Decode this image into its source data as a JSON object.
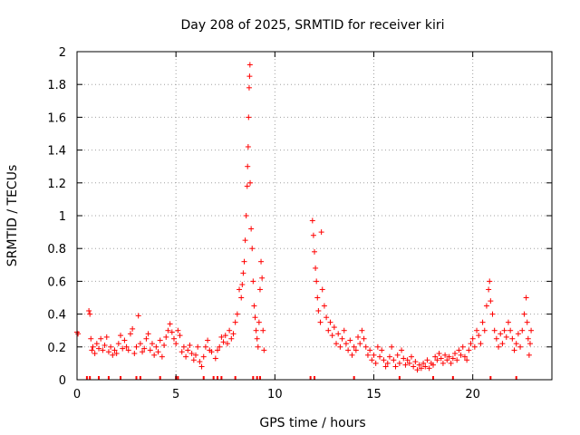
{
  "chart_data": {
    "type": "scatter",
    "title": "Day 208 of 2025, SRMTID for receiver kiri",
    "xlabel": "GPS time / hours",
    "ylabel": "SRMTID / TECUs",
    "xlim": [
      0,
      24
    ],
    "ylim": [
      0,
      2
    ],
    "xticks": [
      0,
      5,
      10,
      15,
      20
    ],
    "xtick_labels": [
      "0",
      "5",
      "10",
      "15",
      "20"
    ],
    "yticks": [
      0,
      0.2,
      0.4,
      0.6,
      0.8,
      1,
      1.2,
      1.4,
      1.6,
      1.8,
      2
    ],
    "ytick_labels": [
      "0",
      "0.2",
      "0.4",
      "0.6",
      "0.8",
      "1",
      "1.2",
      "1.4",
      "1.6",
      "1.8",
      "2"
    ],
    "grid": true,
    "marker": "+",
    "color": "#ff0000",
    "series": [
      {
        "name": "SRMTID",
        "points": [
          [
            0.0,
            0.29
          ],
          [
            0.05,
            0.28
          ],
          [
            0.6,
            0.42
          ],
          [
            0.65,
            0.4
          ],
          [
            0.7,
            0.25
          ],
          [
            0.75,
            0.18
          ],
          [
            0.8,
            0.2
          ],
          [
            0.9,
            0.16
          ],
          [
            1.0,
            0.22
          ],
          [
            1.1,
            0.19
          ],
          [
            1.2,
            0.25
          ],
          [
            1.3,
            0.18
          ],
          [
            1.4,
            0.21
          ],
          [
            1.5,
            0.26
          ],
          [
            1.6,
            0.17
          ],
          [
            1.7,
            0.2
          ],
          [
            1.8,
            0.15
          ],
          [
            1.9,
            0.18
          ],
          [
            2.0,
            0.16
          ],
          [
            2.1,
            0.22
          ],
          [
            2.2,
            0.27
          ],
          [
            2.3,
            0.19
          ],
          [
            2.4,
            0.24
          ],
          [
            2.5,
            0.2
          ],
          [
            2.6,
            0.18
          ],
          [
            2.7,
            0.28
          ],
          [
            2.8,
            0.31
          ],
          [
            2.9,
            0.16
          ],
          [
            3.0,
            0.2
          ],
          [
            3.1,
            0.39
          ],
          [
            3.2,
            0.22
          ],
          [
            3.3,
            0.17
          ],
          [
            3.4,
            0.19
          ],
          [
            3.5,
            0.25
          ],
          [
            3.6,
            0.28
          ],
          [
            3.7,
            0.18
          ],
          [
            3.8,
            0.22
          ],
          [
            3.9,
            0.15
          ],
          [
            4.0,
            0.2
          ],
          [
            4.1,
            0.17
          ],
          [
            4.2,
            0.24
          ],
          [
            4.3,
            0.14
          ],
          [
            4.4,
            0.21
          ],
          [
            4.5,
            0.26
          ],
          [
            4.6,
            0.3
          ],
          [
            4.7,
            0.34
          ],
          [
            4.8,
            0.29
          ],
          [
            4.9,
            0.25
          ],
          [
            5.0,
            0.22
          ],
          [
            5.1,
            0.3
          ],
          [
            5.2,
            0.27
          ],
          [
            5.3,
            0.17
          ],
          [
            5.4,
            0.2
          ],
          [
            5.5,
            0.14
          ],
          [
            5.6,
            0.18
          ],
          [
            5.7,
            0.21
          ],
          [
            5.8,
            0.16
          ],
          [
            5.9,
            0.12
          ],
          [
            6.0,
            0.15
          ],
          [
            6.1,
            0.2
          ],
          [
            6.2,
            0.11
          ],
          [
            6.3,
            0.08
          ],
          [
            6.4,
            0.14
          ],
          [
            6.5,
            0.2
          ],
          [
            6.6,
            0.24
          ],
          [
            6.7,
            0.18
          ],
          [
            6.8,
            0.17
          ],
          [
            7.0,
            0.13
          ],
          [
            7.1,
            0.18
          ],
          [
            7.2,
            0.2
          ],
          [
            7.3,
            0.26
          ],
          [
            7.4,
            0.23
          ],
          [
            7.5,
            0.27
          ],
          [
            7.6,
            0.22
          ],
          [
            7.7,
            0.3
          ],
          [
            7.8,
            0.25
          ],
          [
            7.9,
            0.28
          ],
          [
            8.0,
            0.35
          ],
          [
            8.1,
            0.4
          ],
          [
            8.2,
            0.55
          ],
          [
            8.3,
            0.5
          ],
          [
            8.35,
            0.58
          ],
          [
            8.4,
            0.65
          ],
          [
            8.45,
            0.72
          ],
          [
            8.5,
            0.85
          ],
          [
            8.55,
            1.0
          ],
          [
            8.6,
            1.18
          ],
          [
            8.62,
            1.3
          ],
          [
            8.65,
            1.42
          ],
          [
            8.67,
            1.6
          ],
          [
            8.7,
            1.78
          ],
          [
            8.72,
            1.85
          ],
          [
            8.74,
            1.92
          ],
          [
            8.75,
            1.2
          ],
          [
            8.8,
            0.92
          ],
          [
            8.85,
            0.8
          ],
          [
            8.9,
            0.6
          ],
          [
            8.95,
            0.45
          ],
          [
            9.0,
            0.38
          ],
          [
            9.05,
            0.3
          ],
          [
            9.1,
            0.25
          ],
          [
            9.15,
            0.2
          ],
          [
            9.2,
            0.35
          ],
          [
            9.25,
            0.55
          ],
          [
            9.3,
            0.72
          ],
          [
            9.35,
            0.62
          ],
          [
            9.4,
            0.3
          ],
          [
            9.45,
            0.18
          ],
          [
            11.9,
            0.97
          ],
          [
            11.95,
            0.88
          ],
          [
            12.0,
            0.78
          ],
          [
            12.05,
            0.68
          ],
          [
            12.1,
            0.6
          ],
          [
            12.15,
            0.5
          ],
          [
            12.2,
            0.42
          ],
          [
            12.3,
            0.35
          ],
          [
            12.35,
            0.9
          ],
          [
            12.4,
            0.55
          ],
          [
            12.5,
            0.45
          ],
          [
            12.6,
            0.38
          ],
          [
            12.7,
            0.3
          ],
          [
            12.8,
            0.35
          ],
          [
            12.9,
            0.27
          ],
          [
            13.0,
            0.32
          ],
          [
            13.1,
            0.22
          ],
          [
            13.2,
            0.28
          ],
          [
            13.3,
            0.2
          ],
          [
            13.4,
            0.25
          ],
          [
            13.5,
            0.3
          ],
          [
            13.6,
            0.22
          ],
          [
            13.7,
            0.18
          ],
          [
            13.8,
            0.24
          ],
          [
            13.9,
            0.15
          ],
          [
            14.0,
            0.2
          ],
          [
            14.1,
            0.18
          ],
          [
            14.2,
            0.26
          ],
          [
            14.3,
            0.22
          ],
          [
            14.4,
            0.3
          ],
          [
            14.5,
            0.25
          ],
          [
            14.6,
            0.2
          ],
          [
            14.7,
            0.15
          ],
          [
            14.8,
            0.18
          ],
          [
            14.9,
            0.12
          ],
          [
            15.0,
            0.15
          ],
          [
            15.1,
            0.1
          ],
          [
            15.2,
            0.2
          ],
          [
            15.3,
            0.14
          ],
          [
            15.4,
            0.18
          ],
          [
            15.5,
            0.12
          ],
          [
            15.6,
            0.08
          ],
          [
            15.7,
            0.1
          ],
          [
            15.8,
            0.14
          ],
          [
            15.9,
            0.2
          ],
          [
            16.0,
            0.12
          ],
          [
            16.1,
            0.08
          ],
          [
            16.2,
            0.15
          ],
          [
            16.3,
            0.1
          ],
          [
            16.4,
            0.18
          ],
          [
            16.5,
            0.13
          ],
          [
            16.6,
            0.09
          ],
          [
            16.7,
            0.12
          ],
          [
            16.8,
            0.1
          ],
          [
            16.9,
            0.14
          ],
          [
            17.0,
            0.08
          ],
          [
            17.1,
            0.11
          ],
          [
            17.2,
            0.06
          ],
          [
            17.3,
            0.09
          ],
          [
            17.4,
            0.07
          ],
          [
            17.5,
            0.1
          ],
          [
            17.6,
            0.08
          ],
          [
            17.7,
            0.12
          ],
          [
            17.8,
            0.07
          ],
          [
            17.9,
            0.1
          ],
          [
            18.0,
            0.09
          ],
          [
            18.1,
            0.14
          ],
          [
            18.2,
            0.12
          ],
          [
            18.3,
            0.16
          ],
          [
            18.4,
            0.13
          ],
          [
            18.5,
            0.1
          ],
          [
            18.6,
            0.15
          ],
          [
            18.7,
            0.12
          ],
          [
            18.8,
            0.14
          ],
          [
            18.9,
            0.1
          ],
          [
            19.0,
            0.13
          ],
          [
            19.1,
            0.16
          ],
          [
            19.2,
            0.12
          ],
          [
            19.3,
            0.18
          ],
          [
            19.4,
            0.15
          ],
          [
            19.5,
            0.2
          ],
          [
            19.6,
            0.14
          ],
          [
            19.7,
            0.12
          ],
          [
            19.8,
            0.18
          ],
          [
            19.9,
            0.22
          ],
          [
            20.0,
            0.25
          ],
          [
            20.1,
            0.2
          ],
          [
            20.2,
            0.3
          ],
          [
            20.3,
            0.27
          ],
          [
            20.4,
            0.22
          ],
          [
            20.5,
            0.35
          ],
          [
            20.6,
            0.3
          ],
          [
            20.7,
            0.45
          ],
          [
            20.8,
            0.55
          ],
          [
            20.85,
            0.6
          ],
          [
            20.9,
            0.48
          ],
          [
            21.0,
            0.4
          ],
          [
            21.1,
            0.3
          ],
          [
            21.2,
            0.25
          ],
          [
            21.3,
            0.2
          ],
          [
            21.4,
            0.28
          ],
          [
            21.5,
            0.22
          ],
          [
            21.6,
            0.3
          ],
          [
            21.7,
            0.26
          ],
          [
            21.8,
            0.35
          ],
          [
            21.9,
            0.3
          ],
          [
            22.0,
            0.25
          ],
          [
            22.1,
            0.18
          ],
          [
            22.2,
            0.22
          ],
          [
            22.3,
            0.28
          ],
          [
            22.4,
            0.2
          ],
          [
            22.5,
            0.3
          ],
          [
            22.6,
            0.4
          ],
          [
            22.7,
            0.5
          ],
          [
            22.75,
            0.35
          ],
          [
            22.8,
            0.25
          ],
          [
            22.85,
            0.15
          ],
          [
            22.9,
            0.22
          ],
          [
            22.95,
            0.3
          ]
        ]
      }
    ],
    "zero_markers_x": [
      0.5,
      0.65,
      1.1,
      1.6,
      2.2,
      3.0,
      3.2,
      4.2,
      5.0,
      5.1,
      6.4,
      6.9,
      7.1,
      7.3,
      8.0,
      8.9,
      9.1,
      9.25,
      11.8,
      12.0,
      14.0,
      16.3,
      18.0,
      19.0,
      20.9,
      22.2
    ]
  }
}
